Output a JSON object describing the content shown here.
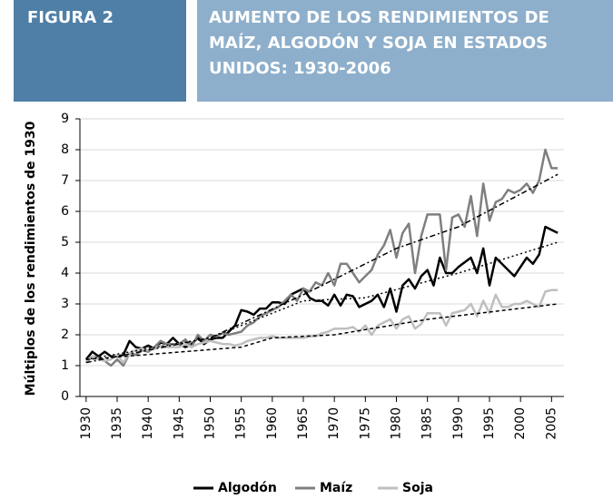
{
  "chart_data": {
    "type": "line",
    "figure_label": "FIGURA 2",
    "title": [
      "AUMENTO DE LOS RENDIMIENTOS DE",
      "MAÍZ, ALGODÓN Y SOJA EN ESTADOS",
      "UNIDOS: 1930-2006"
    ],
    "ylabel": "Múltiplos de los rendimientos de 1930",
    "x": [
      1930,
      1931,
      1932,
      1933,
      1934,
      1935,
      1936,
      1937,
      1938,
      1939,
      1940,
      1941,
      1942,
      1943,
      1944,
      1945,
      1946,
      1947,
      1948,
      1949,
      1950,
      1951,
      1952,
      1953,
      1954,
      1955,
      1956,
      1957,
      1958,
      1959,
      1960,
      1961,
      1962,
      1963,
      1964,
      1965,
      1966,
      1967,
      1968,
      1969,
      1970,
      1971,
      1972,
      1973,
      1974,
      1975,
      1976,
      1977,
      1978,
      1979,
      1980,
      1981,
      1982,
      1983,
      1984,
      1985,
      1986,
      1987,
      1988,
      1989,
      1990,
      1991,
      1992,
      1993,
      1994,
      1995,
      1996,
      1997,
      1998,
      1999,
      2000,
      2001,
      2002,
      2003,
      2004,
      2005,
      2006
    ],
    "xlim": [
      1929,
      2007
    ],
    "xticks": [
      1930,
      1935,
      1940,
      1945,
      1950,
      1955,
      1960,
      1965,
      1970,
      1975,
      1980,
      1985,
      1990,
      1995,
      2000,
      2005
    ],
    "ylim": [
      0,
      9
    ],
    "yticks": [
      0,
      1,
      2,
      3,
      4,
      5,
      6,
      7,
      8,
      9
    ],
    "grid": true,
    "legend": "bottom",
    "series": [
      {
        "name": "Algodón",
        "color": "#000000",
        "values": [
          1.2,
          1.45,
          1.3,
          1.45,
          1.3,
          1.3,
          1.35,
          1.8,
          1.6,
          1.55,
          1.65,
          1.55,
          1.75,
          1.7,
          1.9,
          1.7,
          1.6,
          1.7,
          1.9,
          1.7,
          1.85,
          1.9,
          1.9,
          2.1,
          2.3,
          2.8,
          2.75,
          2.65,
          2.85,
          2.85,
          3.05,
          3.05,
          3.0,
          3.3,
          3.4,
          3.5,
          3.2,
          3.1,
          3.1,
          2.95,
          3.3,
          2.95,
          3.3,
          3.25,
          2.9,
          3.0,
          3.1,
          3.3,
          2.9,
          3.5,
          2.75,
          3.6,
          3.8,
          3.5,
          3.9,
          4.1,
          3.6,
          4.5,
          4.0,
          4.0,
          4.2,
          4.35,
          4.5,
          4.0,
          4.8,
          3.6,
          4.5,
          4.3,
          4.1,
          3.9,
          4.2,
          4.5,
          4.3,
          4.6,
          5.5,
          5.4,
          5.3
        ],
        "trend": {
          "x": [
            1930,
            1950,
            1965,
            1975,
            1990,
            2006
          ],
          "values": [
            1.2,
            1.9,
            3.1,
            3.2,
            4.0,
            5.0
          ]
        }
      },
      {
        "name": "Maíz",
        "color": "#7f7f7f",
        "values": [
          1.1,
          1.3,
          1.25,
          1.15,
          1.0,
          1.2,
          1.0,
          1.4,
          1.35,
          1.5,
          1.45,
          1.6,
          1.8,
          1.7,
          1.7,
          1.7,
          1.85,
          1.6,
          2.0,
          1.8,
          2.0,
          1.95,
          2.05,
          2.0,
          2.05,
          2.1,
          2.3,
          2.4,
          2.6,
          2.7,
          2.8,
          2.9,
          3.1,
          3.3,
          3.1,
          3.5,
          3.4,
          3.7,
          3.6,
          4.0,
          3.6,
          4.3,
          4.3,
          4.0,
          3.7,
          3.9,
          4.1,
          4.6,
          4.9,
          5.4,
          4.5,
          5.3,
          5.6,
          4.0,
          5.2,
          5.9,
          5.9,
          5.9,
          4.1,
          5.8,
          5.9,
          5.5,
          6.5,
          5.2,
          6.9,
          5.7,
          6.3,
          6.4,
          6.7,
          6.6,
          6.7,
          6.9,
          6.6,
          7.0,
          8.0,
          7.4,
          7.4
        ],
        "trend": {
          "x": [
            1930,
            1950,
            1965,
            1980,
            1990,
            2006
          ],
          "values": [
            1.1,
            1.9,
            3.3,
            4.8,
            5.5,
            7.2
          ]
        }
      },
      {
        "name": "Soja",
        "color": "#bfbfbf",
        "values": [
          1.15,
          1.3,
          1.2,
          1.15,
          1.2,
          1.35,
          1.1,
          1.4,
          1.5,
          1.55,
          1.5,
          1.55,
          1.65,
          1.6,
          1.6,
          1.6,
          1.7,
          1.6,
          1.7,
          1.75,
          1.8,
          1.75,
          1.7,
          1.7,
          1.65,
          1.7,
          1.8,
          1.85,
          1.9,
          1.9,
          1.95,
          1.9,
          1.9,
          1.9,
          1.9,
          1.9,
          1.95,
          1.95,
          2.05,
          2.1,
          2.2,
          2.2,
          2.2,
          2.25,
          2.1,
          2.3,
          2.0,
          2.3,
          2.4,
          2.5,
          2.2,
          2.5,
          2.6,
          2.2,
          2.35,
          2.7,
          2.7,
          2.7,
          2.3,
          2.7,
          2.75,
          2.8,
          3.0,
          2.6,
          3.1,
          2.7,
          3.3,
          2.9,
          2.9,
          3.0,
          3.0,
          3.1,
          3.0,
          2.9,
          3.4,
          3.45,
          3.45
        ],
        "trend": {
          "x": [
            1930,
            1955,
            1960,
            1970,
            1985,
            2006
          ],
          "values": [
            1.2,
            1.6,
            1.9,
            2.0,
            2.5,
            3.0
          ]
        }
      }
    ]
  }
}
